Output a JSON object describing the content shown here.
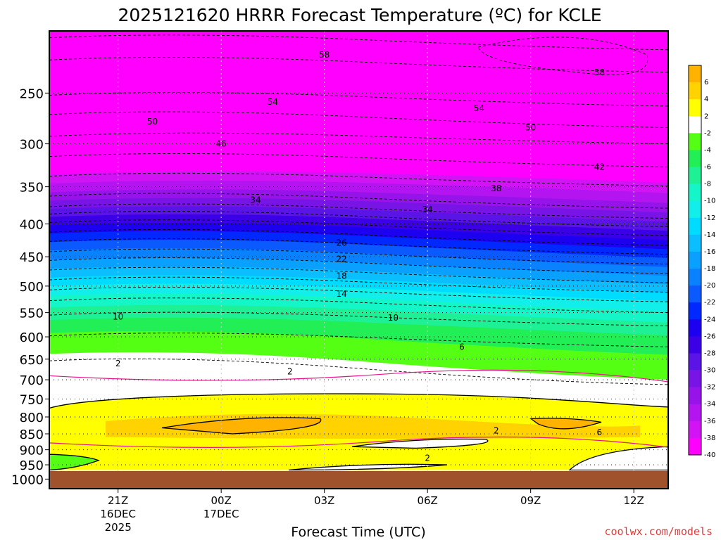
{
  "page": {
    "title": "2025121620 HRRR Forecast Temperature (ºC) for KCLE",
    "credit": "coolwx.com/models"
  },
  "chart_data": {
    "type": "heatmap",
    "title": "2025121620 HRRR Forecast Temperature (ºC) for KCLE",
    "xlabel": "Forecast Time (UTC)",
    "ylabel": "",
    "y_axis": {
      "scale": "log-pressure",
      "inverted": true,
      "ticks": [
        250,
        300,
        350,
        400,
        450,
        500,
        550,
        600,
        650,
        700,
        750,
        800,
        850,
        900,
        950,
        1000
      ],
      "range": [
        200,
        1035
      ]
    },
    "x_axis": {
      "range_hours_utc": [
        "2025-12-16 19:00",
        "2025-12-17 13:00"
      ],
      "ticks": [
        {
          "time": "2025-12-16 21:00",
          "label": "21Z",
          "sub1": "16DEC",
          "sub2": "2025"
        },
        {
          "time": "2025-12-17 00:00",
          "label": "00Z",
          "sub1": "17DEC",
          "sub2": ""
        },
        {
          "time": "2025-12-17 03:00",
          "label": "03Z",
          "sub1": "",
          "sub2": ""
        },
        {
          "time": "2025-12-17 06:00",
          "label": "06Z",
          "sub1": "",
          "sub2": ""
        },
        {
          "time": "2025-12-17 09:00",
          "label": "09Z",
          "sub1": "",
          "sub2": ""
        },
        {
          "time": "2025-12-17 12:00",
          "label": "12Z",
          "sub1": "",
          "sub2": ""
        }
      ]
    },
    "grid": {
      "x": true,
      "y": true,
      "style": "dotted"
    },
    "colorbar": {
      "placement": "right",
      "levels": [
        {
          "label": "6",
          "color": "#ffb300"
        },
        {
          "label": "4",
          "color": "#ffd200"
        },
        {
          "label": "2",
          "color": "#ffff00"
        },
        {
          "label": "-2",
          "color": "#ffffff"
        },
        {
          "label": "-4",
          "color": "#55ff14"
        },
        {
          "label": "-6",
          "color": "#22ee55"
        },
        {
          "label": "-8",
          "color": "#1ef096"
        },
        {
          "label": "-10",
          "color": "#14f5c8"
        },
        {
          "label": "-12",
          "color": "#12eeea"
        },
        {
          "label": "-14",
          "color": "#00dcff"
        },
        {
          "label": "-16",
          "color": "#0abeff"
        },
        {
          "label": "-18",
          "color": "#0aa0ff"
        },
        {
          "label": "-20",
          "color": "#0a82ff"
        },
        {
          "label": "-22",
          "color": "#0a5aff"
        },
        {
          "label": "-24",
          "color": "#0028ff"
        },
        {
          "label": "-26",
          "color": "#1e00f0"
        },
        {
          "label": "-28",
          "color": "#3c00e6"
        },
        {
          "label": "-30",
          "color": "#5a14e6"
        },
        {
          "label": "-32",
          "color": "#7814e6"
        },
        {
          "label": "-34",
          "color": "#9614ea"
        },
        {
          "label": "-36",
          "color": "#b414f0"
        },
        {
          "label": "-38",
          "color": "#d214f5"
        },
        {
          "label": "-40",
          "color": "#ff00ff"
        }
      ]
    },
    "ground_color": "#a0522d",
    "warm_layer": {
      "color_fill": "#ffff00",
      "peak_color": "#ffb300",
      "top_pressure_start": 752,
      "top_pressure_end": 772,
      "bottom_pressure": 968
    },
    "isotherm_labels": [
      {
        "label": "58",
        "time": "2025-12-17 03:00",
        "pressure": 218
      },
      {
        "label": "58",
        "time": "2025-12-17 11:00",
        "pressure": 232
      },
      {
        "label": "54",
        "time": "2025-12-17 01:30",
        "pressure": 258
      },
      {
        "label": "54",
        "time": "2025-12-17 07:30",
        "pressure": 264
      },
      {
        "label": "50",
        "time": "2025-12-16 22:00",
        "pressure": 277
      },
      {
        "label": "50",
        "time": "2025-12-17 09:00",
        "pressure": 283
      },
      {
        "label": "46",
        "time": "2025-12-17 00:00",
        "pressure": 300
      },
      {
        "label": "42",
        "time": "2025-12-17 11:00",
        "pressure": 326
      },
      {
        "label": "38",
        "time": "2025-12-17 08:00",
        "pressure": 352
      },
      {
        "label": "34",
        "time": "2025-12-17 01:00",
        "pressure": 367
      },
      {
        "label": "34",
        "time": "2025-12-17 06:00",
        "pressure": 380
      },
      {
        "label": "26",
        "time": "2025-12-17 03:30",
        "pressure": 428
      },
      {
        "label": "22",
        "time": "2025-12-17 03:30",
        "pressure": 454
      },
      {
        "label": "18",
        "time": "2025-12-17 03:30",
        "pressure": 482
      },
      {
        "label": "14",
        "time": "2025-12-17 03:30",
        "pressure": 514
      },
      {
        "label": "10",
        "time": "2025-12-16 21:00",
        "pressure": 558
      },
      {
        "label": "10",
        "time": "2025-12-17 05:00",
        "pressure": 560
      },
      {
        "label": "6",
        "time": "2025-12-17 07:00",
        "pressure": 622
      },
      {
        "label": "2",
        "time": "2025-12-16 21:00",
        "pressure": 660
      },
      {
        "label": "2",
        "time": "2025-12-17 02:00",
        "pressure": 680
      },
      {
        "label": "2",
        "time": "2025-12-17 08:00",
        "pressure": 840
      },
      {
        "label": "6",
        "time": "2025-12-17 11:00",
        "pressure": 846
      },
      {
        "label": "2",
        "time": "2025-12-17 06:00",
        "pressure": 927
      }
    ]
  }
}
